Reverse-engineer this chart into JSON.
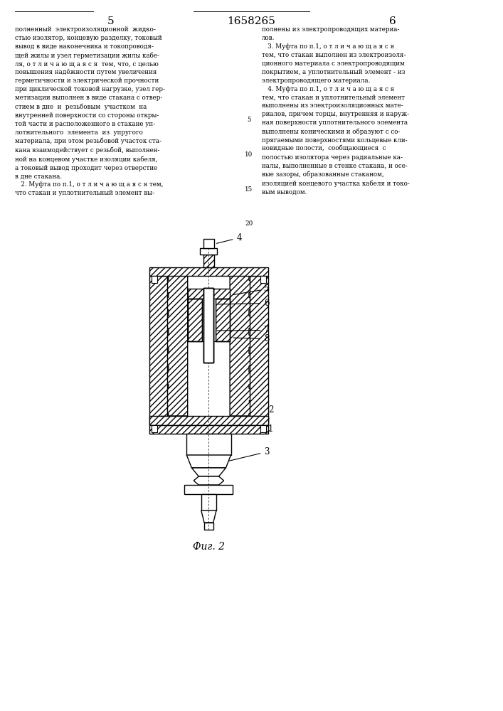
{
  "page_left": "5",
  "page_center": "1658265",
  "page_right": "6",
  "caption": "Фиг. 2",
  "bg": "#ffffff",
  "lc": "#000000",
  "text_left": "полненный  электроизоляционной  жидко-\nстью изолятор, концевую разделку, токовый\nвывод в виде наконечника и токопроводя-\nщей жилы и узел герметизации жилы кабе-\nля, о т л и ч а ю щ а я с я  тем, что, с целью\nповышения надёжности путем увеличения\nгерметичности и электрической прочности\nпри циклической токовой нагрузке, узел гер-\nметизации выполнен в виде стакана с отвер-\nстием в дне  и  резьбовым  участком  на\nвнутренней поверхности со стороны откры-\nтой части и расположенного в стакане уп-\nлотнительного  элемента  из  упругого\nматериала, при этом резьбовой участок ста-\nкана взаимодействует с резьбой, выполнен-\nной на концевом участке изоляции кабеля,\nа токовый вывод проходит через отверстие\nв дне стакана.\n   2. Муфта по п.1, о т л и ч а ю щ а я с я тем,\nчто стакан и уплотнительный элемент вы-",
  "text_right": "полнены из электропроводящих материа-\nлов.\n   3. Муфта по п.1, о т л и ч а ю щ а я с я\nтем, что стакан выполнен из электроизоля-\nционного материала с электропроводящим\nпокрытием, а уплотнительный элемент - из\nэлектропроводящего материала.\n   4. Муфта по п.1, о т л и ч а ю щ а я с я\nтем, что стакан и уплотнительный элемент\nвыполнены из электроизоляционных мате-\nриалов, причем торцы, внутренняя и наруж-\nная поверхности уплотнительного элемента\nвыполнены коническими и образуют с со-\nпрягаемыми поверхностями кольцевые кли-\nновидные полости,  сообщающиеся  с\nполостью изолятора через радиальные ка-\nналы, выполненные в стенке стакана, и осе-\nвые зазоры, образованные стаканом,\nизоляцией концевого участка кабеля и токо-\nвым выводом.",
  "line_nums": [
    [
      5,
      0.836
    ],
    [
      10,
      0.787
    ],
    [
      15,
      0.738
    ],
    [
      20,
      0.69
    ]
  ],
  "fig_width": 7.07,
  "fig_height": 10.0
}
